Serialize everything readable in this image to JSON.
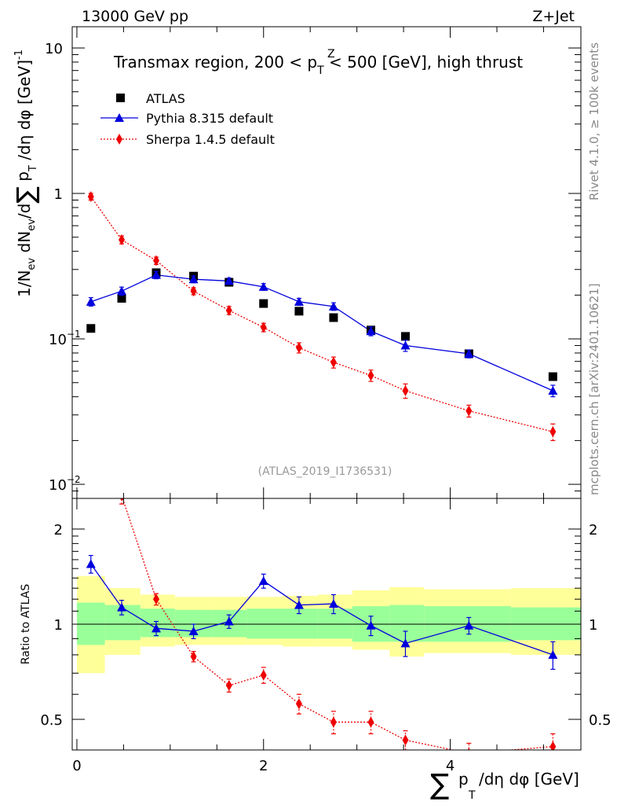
{
  "header": {
    "left": "13000 GeV pp",
    "right": "Z+Jet"
  },
  "side": {
    "rivet": "Rivet 4.1.0, ≥ 100k events",
    "mcplots": "mcplots.cern.ch [arXiv:2401.10621]"
  },
  "colors": {
    "atlas": "#000000",
    "pythia": "#0000dd",
    "sherpa": "#ee0000",
    "band_inner": "#99ff99",
    "band_outer": "#ffff99"
  },
  "chart_data": [
    {
      "type": "scatter",
      "title": "Transmax region, 200 < p_T^Z < 500 [GeV], high thrust",
      "title_main": "Transmax region, 200 < p",
      "title_sub": "T",
      "title_sup": "Z",
      "title_rest": " < 500 [GeV], high thrust",
      "ylabel": "1/N_ev dN_ev/d∑ p_T /dη dφ [GeV]^-1",
      "ylabel_parts": [
        "1/N",
        "ev",
        " dN",
        "ev",
        "/d",
        "∑",
        " p",
        "T",
        " /dη dφ  [GeV]",
        "-1"
      ],
      "yscale": "log",
      "ylim": [
        0.008,
        14
      ],
      "xlim": [
        -0.05,
        5.4
      ],
      "yticks": [
        {
          "value": 10,
          "label": "10",
          "sup": ""
        },
        {
          "value": 1,
          "label": "1",
          "sup": ""
        },
        {
          "value": 0.1,
          "label": "10",
          "sup": "−1"
        },
        {
          "value": 0.01,
          "label": "10",
          "sup": "−2"
        }
      ],
      "watermark": "(ATLAS_2019_I1736531)",
      "legend": [
        {
          "name": "ATLAS",
          "marker": "square"
        },
        {
          "name": "Pythia 8.315 default",
          "marker": "triangle"
        },
        {
          "name": "Sherpa 1.4.5 default",
          "marker": "diamond"
        }
      ],
      "series": [
        {
          "name": "ATLAS",
          "x": [
            0.15,
            0.48,
            0.85,
            1.25,
            1.63,
            2.0,
            2.38,
            2.75,
            3.15,
            3.52,
            4.2,
            5.1
          ],
          "y": [
            0.118,
            0.19,
            0.285,
            0.27,
            0.245,
            0.175,
            0.155,
            0.14,
            0.115,
            0.104,
            0.079,
            0.055
          ],
          "err": [
            0,
            0,
            0,
            0,
            0,
            0,
            0,
            0,
            0,
            0,
            0,
            0
          ]
        },
        {
          "name": "Pythia 8.315 default",
          "x": [
            0.15,
            0.48,
            0.85,
            1.25,
            1.63,
            2.0,
            2.38,
            2.75,
            3.15,
            3.52,
            4.2,
            5.1
          ],
          "y": [
            0.18,
            0.213,
            0.275,
            0.257,
            0.25,
            0.228,
            0.18,
            0.167,
            0.113,
            0.09,
            0.079,
            0.044
          ],
          "err": [
            0.012,
            0.014,
            0.016,
            0.014,
            0.012,
            0.012,
            0.01,
            0.01,
            0.008,
            0.008,
            0.005,
            0.004
          ]
        },
        {
          "name": "Sherpa 1.4.5 default",
          "x": [
            0.15,
            0.48,
            0.85,
            1.25,
            1.63,
            2.0,
            2.38,
            2.75,
            3.15,
            3.52,
            4.2,
            5.1
          ],
          "y": [
            0.95,
            0.48,
            0.345,
            0.213,
            0.157,
            0.12,
            0.087,
            0.069,
            0.056,
            0.044,
            0.032,
            0.023
          ],
          "err": [
            0.05,
            0.03,
            0.02,
            0.012,
            0.01,
            0.008,
            0.007,
            0.006,
            0.005,
            0.005,
            0.003,
            0.003
          ]
        }
      ]
    },
    {
      "type": "line",
      "title": "Ratio to ATLAS",
      "ylabel": "Ratio to ATLAS",
      "xlabel": "∑ p_T /dη dφ [GeV]",
      "xlabel_parts": [
        "∑",
        "p",
        "T",
        "/dη dφ [GeV]"
      ],
      "yscale": "log",
      "ylim": [
        0.4,
        2.5
      ],
      "xlim": [
        -0.05,
        5.4
      ],
      "xticks": [
        0,
        2,
        4
      ],
      "yticks": [
        0.5,
        1,
        2
      ],
      "ytick_labels": [
        "0.5",
        "1",
        "2"
      ],
      "band_edges": [
        0,
        0.3,
        0.68,
        1.05,
        1.45,
        1.82,
        2.2,
        2.58,
        2.95,
        3.35,
        3.72,
        4.65,
        5.5
      ],
      "band_inner": [
        [
          0.86,
          1.17
        ],
        [
          0.89,
          1.15
        ],
        [
          0.91,
          1.12
        ],
        [
          0.91,
          1.11
        ],
        [
          0.91,
          1.11
        ],
        [
          0.9,
          1.12
        ],
        [
          0.9,
          1.12
        ],
        [
          0.9,
          1.12
        ],
        [
          0.88,
          1.14
        ],
        [
          0.88,
          1.15
        ],
        [
          0.88,
          1.14
        ],
        [
          0.89,
          1.13
        ]
      ],
      "band_outer": [
        [
          0.7,
          1.42
        ],
        [
          0.8,
          1.3
        ],
        [
          0.85,
          1.24
        ],
        [
          0.86,
          1.22
        ],
        [
          0.86,
          1.22
        ],
        [
          0.86,
          1.22
        ],
        [
          0.85,
          1.23
        ],
        [
          0.85,
          1.24
        ],
        [
          0.83,
          1.28
        ],
        [
          0.79,
          1.31
        ],
        [
          0.81,
          1.29
        ],
        [
          0.8,
          1.3
        ]
      ],
      "series": [
        {
          "name": "Pythia 8.315 default",
          "x": [
            0.15,
            0.48,
            0.85,
            1.25,
            1.63,
            2.0,
            2.38,
            2.75,
            3.15,
            3.52,
            4.2,
            5.1
          ],
          "y": [
            1.55,
            1.13,
            0.97,
            0.95,
            1.02,
            1.37,
            1.15,
            1.16,
            0.99,
            0.87,
            0.99,
            0.8
          ],
          "err": [
            0.1,
            0.06,
            0.05,
            0.05,
            0.05,
            0.07,
            0.07,
            0.08,
            0.07,
            0.08,
            0.06,
            0.08
          ]
        },
        {
          "name": "Sherpa 1.4.5 default",
          "x": [
            0.48,
            0.85,
            1.25,
            1.63,
            2.0,
            2.38,
            2.75,
            3.15,
            3.52,
            4.2,
            5.1
          ],
          "y": [
            2.55,
            1.2,
            0.79,
            0.64,
            0.69,
            0.56,
            0.49,
            0.49,
            0.43,
            0.39,
            0.41
          ],
          "err": [
            0.15,
            0.05,
            0.03,
            0.03,
            0.04,
            0.04,
            0.04,
            0.04,
            0.03,
            0.03,
            0.04
          ]
        }
      ]
    }
  ]
}
